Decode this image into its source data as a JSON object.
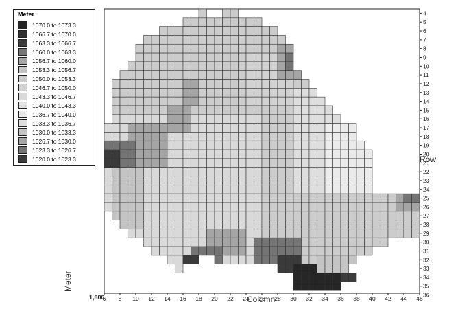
{
  "chart_data": {
    "type": "heatmap",
    "xlabel": "Column",
    "ylabel": "Row",
    "zlabel": "Meter",
    "corner_label": "1,800",
    "x_range": [
      6,
      46
    ],
    "y_range": [
      4,
      36
    ],
    "x_ticks": [
      "6",
      "8",
      "10",
      "12",
      "14",
      "16",
      "18",
      "20",
      "22",
      "24",
      "26",
      "28",
      "30",
      "32",
      "34",
      "36",
      "38",
      "40",
      "42",
      "44",
      "46"
    ],
    "y_ticks": [
      "4",
      "5",
      "6",
      "7",
      "8",
      "9",
      "10",
      "11",
      "12",
      "13",
      "14",
      "15",
      "16",
      "17",
      "18",
      "19",
      "20",
      "21",
      "22",
      "23",
      "24",
      "25",
      "26",
      "27",
      "28",
      "29",
      "30",
      "31",
      "32",
      "33",
      "34",
      "35",
      "36"
    ],
    "legend": {
      "title": "Meter",
      "items": [
        {
          "label": "1070.0 to 1073.3",
          "color": "#262626"
        },
        {
          "label": "1066.7 to 1070.0",
          "color": "#2f2f2f"
        },
        {
          "label": "1063.3 to 1066.7",
          "color": "#3c3c3c"
        },
        {
          "label": "1060.0 to 1063.3",
          "color": "#777777"
        },
        {
          "label": "1056.7 to 1060.0",
          "color": "#a4a4a4"
        },
        {
          "label": "1053.3 to 1056.7",
          "color": "#c3c3c3"
        },
        {
          "label": "1050.0 to 1053.3",
          "color": "#cccccc"
        },
        {
          "label": "1046.7 to 1050.0",
          "color": "#d2d2d2"
        },
        {
          "label": "1043.3 to 1046.7",
          "color": "#d9d9d9"
        },
        {
          "label": "1040.0 to 1043.3",
          "color": "#e1e1e1"
        },
        {
          "label": "1036.7 to 1040.0",
          "color": "#ebebeb"
        },
        {
          "label": "1033.3 to 1036.7",
          "color": "#dedede"
        },
        {
          "label": "1030.0 to 1033.3",
          "color": "#c4c4c4"
        },
        {
          "label": "1026.7 to 1030.0",
          "color": "#a5a5a5"
        },
        {
          "label": "1023.3 to 1026.7",
          "color": "#747474"
        },
        {
          "label": "1020.0 to 1023.3",
          "color": "#3a3a3a"
        }
      ]
    },
    "row_ranges": [
      {
        "row": 4,
        "segments": [
          [
            18,
            18
          ],
          [
            21,
            22
          ]
        ]
      },
      {
        "row": 5,
        "segments": [
          [
            16,
            25
          ]
        ]
      },
      {
        "row": 6,
        "segments": [
          [
            13,
            27
          ]
        ]
      },
      {
        "row": 7,
        "segments": [
          [
            11,
            28
          ]
        ]
      },
      {
        "row": 8,
        "segments": [
          [
            10,
            29
          ]
        ]
      },
      {
        "row": 9,
        "segments": [
          [
            10,
            29
          ]
        ]
      },
      {
        "row": 10,
        "segments": [
          [
            9,
            29
          ]
        ]
      },
      {
        "row": 11,
        "segments": [
          [
            8,
            30
          ]
        ]
      },
      {
        "row": 12,
        "segments": [
          [
            7,
            31
          ]
        ]
      },
      {
        "row": 13,
        "segments": [
          [
            7,
            32
          ]
        ]
      },
      {
        "row": 14,
        "segments": [
          [
            7,
            33
          ]
        ]
      },
      {
        "row": 15,
        "segments": [
          [
            7,
            34
          ]
        ]
      },
      {
        "row": 16,
        "segments": [
          [
            7,
            35
          ]
        ]
      },
      {
        "row": 17,
        "segments": [
          [
            6,
            37
          ]
        ]
      },
      {
        "row": 18,
        "segments": [
          [
            6,
            37
          ]
        ]
      },
      {
        "row": 19,
        "segments": [
          [
            6,
            38
          ]
        ]
      },
      {
        "row": 20,
        "segments": [
          [
            6,
            39
          ]
        ]
      },
      {
        "row": 21,
        "segments": [
          [
            6,
            39
          ]
        ]
      },
      {
        "row": 22,
        "segments": [
          [
            6,
            39
          ]
        ]
      },
      {
        "row": 23,
        "segments": [
          [
            6,
            39
          ]
        ]
      },
      {
        "row": 24,
        "segments": [
          [
            6,
            39
          ]
        ]
      },
      {
        "row": 25,
        "segments": [
          [
            6,
            45
          ]
        ]
      },
      {
        "row": 26,
        "segments": [
          [
            6,
            45
          ]
        ]
      },
      {
        "row": 27,
        "segments": [
          [
            7,
            45
          ]
        ]
      },
      {
        "row": 28,
        "segments": [
          [
            8,
            45
          ]
        ]
      },
      {
        "row": 29,
        "segments": [
          [
            9,
            45
          ]
        ]
      },
      {
        "row": 30,
        "segments": [
          [
            11,
            41
          ]
        ]
      },
      {
        "row": 31,
        "segments": [
          [
            12,
            39
          ]
        ]
      },
      {
        "row": 32,
        "segments": [
          [
            14,
            17
          ],
          [
            20,
            37
          ]
        ]
      },
      {
        "row": 33,
        "segments": [
          [
            15,
            15
          ],
          [
            28,
            36
          ]
        ]
      },
      {
        "row": 34,
        "segments": [
          [
            30,
            37
          ]
        ]
      },
      {
        "row": 35,
        "segments": [
          [
            30,
            35
          ]
        ]
      }
    ],
    "bin_regions": [
      {
        "bin": 13,
        "rows": [
          8,
          11
        ],
        "cols": [
          28,
          30
        ]
      },
      {
        "bin": 14,
        "rows": [
          9,
          10
        ],
        "cols": [
          29,
          29
        ]
      },
      {
        "bin": 13,
        "rows": [
          12,
          14
        ],
        "cols": [
          16,
          17
        ]
      },
      {
        "bin": 13,
        "rows": [
          15,
          17
        ],
        "cols": [
          14,
          16
        ]
      },
      {
        "bin": 13,
        "rows": [
          17,
          21
        ],
        "cols": [
          9,
          13
        ]
      },
      {
        "bin": 14,
        "rows": [
          19,
          21
        ],
        "cols": [
          6,
          9
        ]
      },
      {
        "bin": 15,
        "rows": [
          20,
          21
        ],
        "cols": [
          6,
          7
        ]
      },
      {
        "bin": 12,
        "rows": [
          22,
          28
        ],
        "cols": [
          7,
          10
        ]
      },
      {
        "bin": 13,
        "rows": [
          25,
          26
        ],
        "cols": [
          43,
          45
        ]
      },
      {
        "bin": 14,
        "rows": [
          25,
          25
        ],
        "cols": [
          44,
          45
        ]
      },
      {
        "bin": 13,
        "rows": [
          29,
          31
        ],
        "cols": [
          19,
          23
        ]
      },
      {
        "bin": 14,
        "rows": [
          31,
          32
        ],
        "cols": [
          17,
          20
        ]
      },
      {
        "bin": 15,
        "rows": [
          32,
          32
        ],
        "cols": [
          16,
          17
        ]
      },
      {
        "bin": 14,
        "rows": [
          30,
          32
        ],
        "cols": [
          25,
          30
        ]
      },
      {
        "bin": 15,
        "rows": [
          32,
          33
        ],
        "cols": [
          28,
          30
        ]
      },
      {
        "bin": 0,
        "rows": [
          33,
          35
        ],
        "cols": [
          30,
          35
        ]
      },
      {
        "bin": 2,
        "rows": [
          34,
          34
        ],
        "cols": [
          36,
          37
        ]
      },
      {
        "bin": 12,
        "rows": [
          32,
          33
        ],
        "cols": [
          33,
          37
        ]
      },
      {
        "bin": 11,
        "rows": [
          13,
          24
        ],
        "cols": [
          30,
          39
        ]
      },
      {
        "bin": 10,
        "rows": [
          17,
          24
        ],
        "cols": [
          34,
          39
        ]
      }
    ]
  }
}
